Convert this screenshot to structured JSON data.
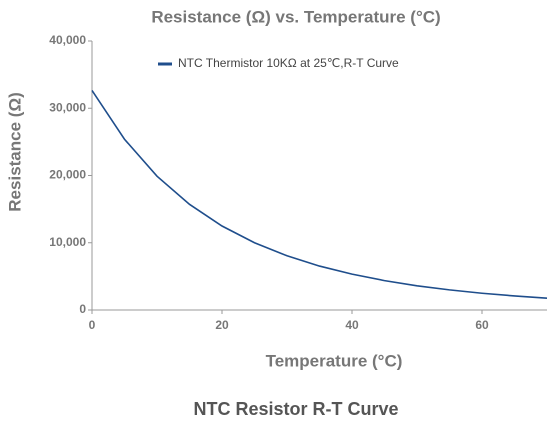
{
  "chart_data": {
    "type": "line",
    "title": "Resistance (Ω) vs. Temperature (°C)",
    "x_label": "Temperature (°C)",
    "y_label": "Resistance (Ω)",
    "x": [
      0,
      5,
      10,
      15,
      20,
      25,
      30,
      35,
      40,
      45,
      50,
      55,
      60,
      65,
      70
    ],
    "series": [
      {
        "name": "NTC Thermistor 10KΩ at 25℃,R-T Curve",
        "color": "#1f4e8c",
        "values": [
          32650,
          25390,
          19900,
          15710,
          12490,
          10000,
          8060,
          6530,
          5330,
          4370,
          3600,
          2990,
          2490,
          2090,
          1760
        ]
      }
    ],
    "xlim": [
      0,
      70
    ],
    "xticks": [
      0,
      20,
      40,
      60
    ],
    "ylim": [
      0,
      40000
    ],
    "yticks": [
      0,
      {
        "value": 10000,
        "label": "10,000"
      },
      {
        "value": 20000,
        "label": "20,000"
      },
      {
        "value": 30000,
        "label": "30,000"
      },
      {
        "value": 40000,
        "label": "40,000"
      }
    ],
    "legend": "top-left"
  },
  "caption": "NTC Resistor R-T Curve"
}
